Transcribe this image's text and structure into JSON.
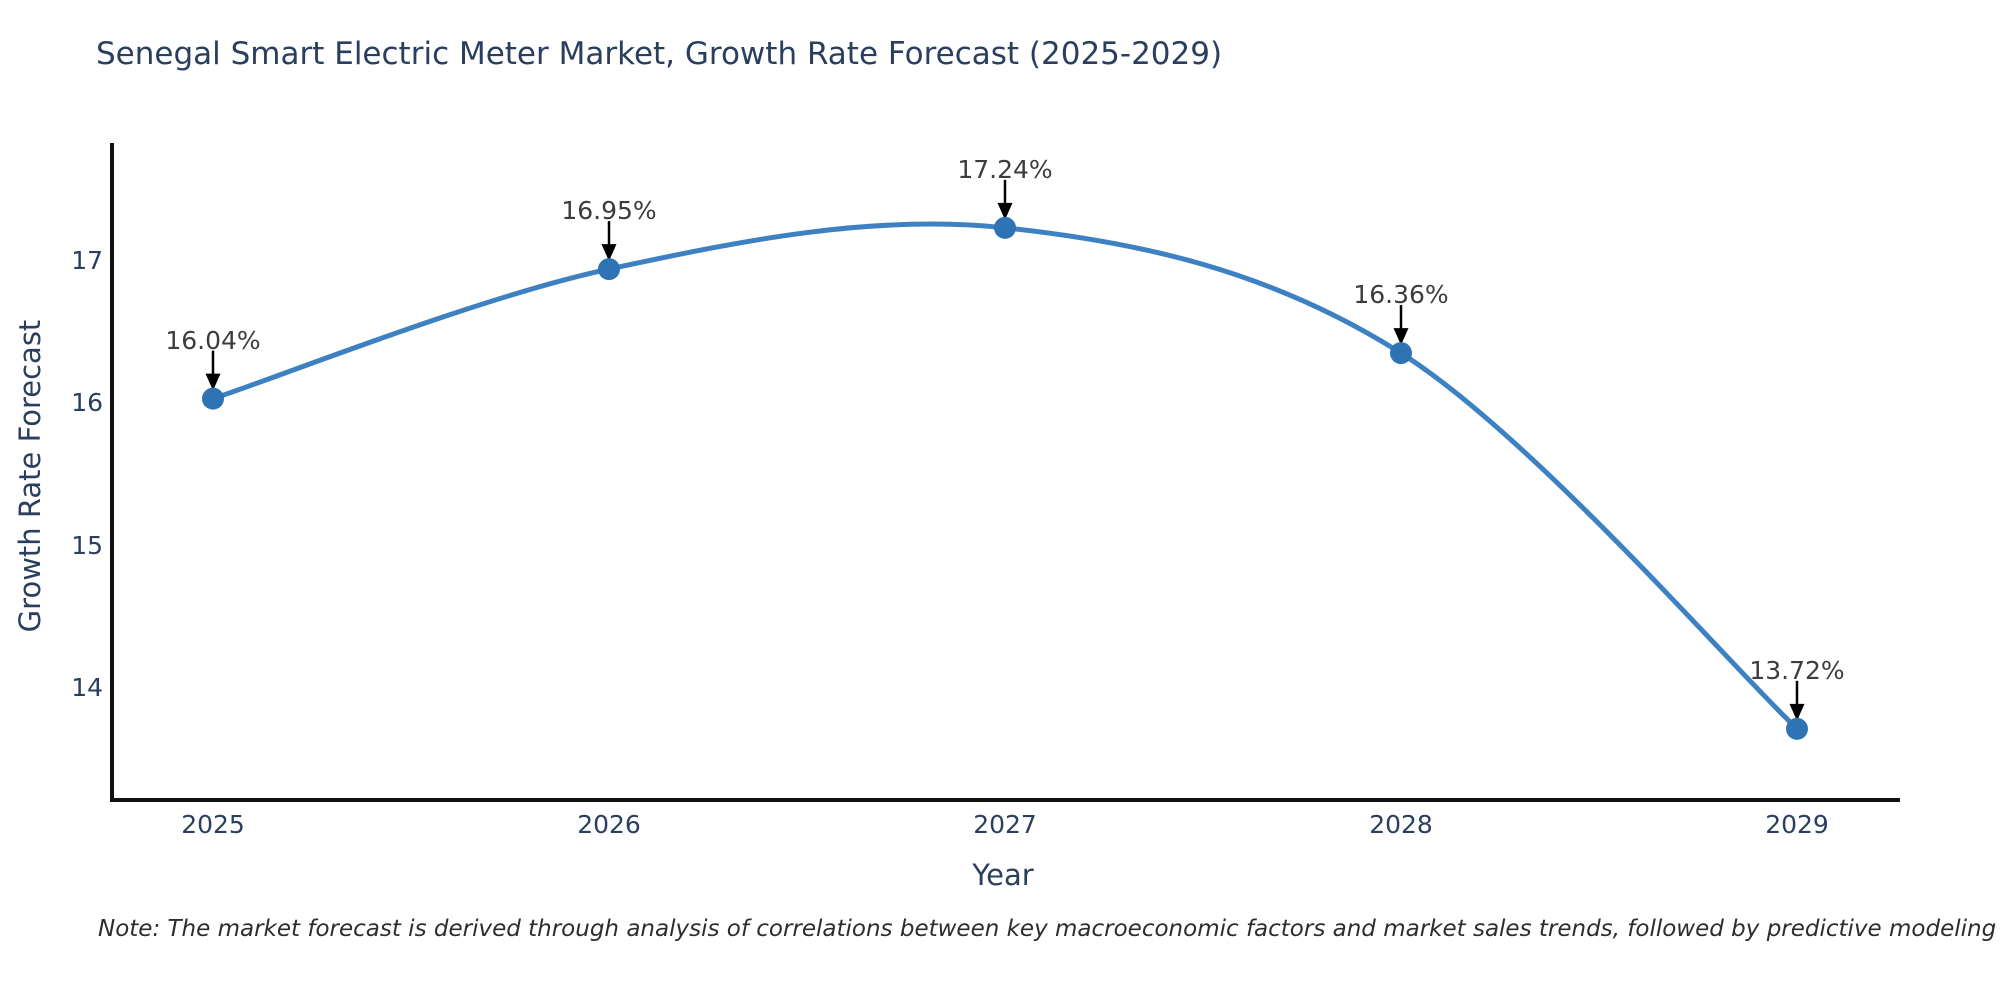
{
  "chart_data": {
    "type": "line",
    "title": "Senegal Smart Electric Meter Market, Growth Rate Forecast (2025-2029)",
    "xlabel": "Year",
    "ylabel": "Growth Rate Forecast",
    "note": "Note: The market forecast is derived through analysis of correlations between key macroeconomic factors and market sales trends, followed by predictive modeling to project future sales.",
    "x": [
      2025,
      2026,
      2027,
      2028,
      2029
    ],
    "values": [
      16.04,
      16.95,
      17.24,
      16.36,
      13.72
    ],
    "point_labels": [
      "16.04%",
      "16.95%",
      "17.24%",
      "16.36%",
      "13.72%"
    ],
    "xticks": [
      "2025",
      "2026",
      "2027",
      "2028",
      "2029"
    ],
    "yticks": [
      17,
      16,
      15,
      14
    ],
    "ylim": [
      13.2,
      17.85
    ],
    "grid": false,
    "legend_position": "none",
    "curve_style": "smooth-spline",
    "annotation_style": "label-above-with-down-arrow",
    "colors": {
      "line": "#3d81c2",
      "marker": "#2e74b4",
      "arrow": "#000000",
      "spine": "#111111",
      "axis_text": "#2a3f5f",
      "annotation_text": "#3c3c3c",
      "title_text": "#2a3f5f"
    }
  }
}
